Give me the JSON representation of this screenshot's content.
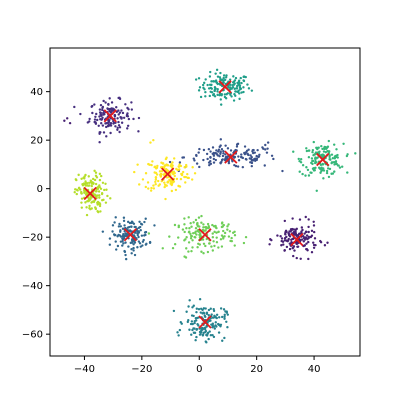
{
  "chart_data": {
    "type": "scatter",
    "title": "",
    "xlabel": "",
    "ylabel": "",
    "xlim": [
      -52,
      56
    ],
    "ylim": [
      -69,
      58
    ],
    "xticks": [
      -40,
      -20,
      0,
      20,
      40
    ],
    "yticks": [
      -60,
      -40,
      -20,
      0,
      20,
      40
    ],
    "xtick_labels": [
      "−40",
      "−20",
      "0",
      "20",
      "40"
    ],
    "ytick_labels": [
      "−60",
      "−40",
      "−20",
      "0",
      "20",
      "40"
    ],
    "grid": false,
    "legend": "none",
    "point_color": "#440154",
    "center_color": "#e31a1c",
    "clusters": [
      {
        "color": "#1f9e89",
        "cx": 9,
        "cy": 42,
        "sx": 5.5,
        "sy": 3.5,
        "n": 150
      },
      {
        "color": "#462f7f",
        "cx": -31,
        "cy": 30,
        "sx": 4.5,
        "sy": 4.0,
        "n": 150
      },
      {
        "color": "#3b528b",
        "cx": 11,
        "cy": 13,
        "sx": 10.0,
        "sy": 2.8,
        "n": 150
      },
      {
        "color": "#35b779",
        "cx": 43,
        "cy": 12,
        "sx": 4.5,
        "sy": 4.0,
        "n": 150
      },
      {
        "color": "#fde725",
        "cx": -11,
        "cy": 6,
        "sx": 5.0,
        "sy": 4.5,
        "n": 150
      },
      {
        "color": "#b5de2b",
        "cx": -38,
        "cy": -2,
        "sx": 3.0,
        "sy": 5.0,
        "n": 150
      },
      {
        "color": "#31688e",
        "cx": -24,
        "cy": -19,
        "sx": 4.0,
        "sy": 4.0,
        "n": 150
      },
      {
        "color": "#6ece58",
        "cx": 2,
        "cy": -19,
        "sx": 6.5,
        "sy": 4.0,
        "n": 150
      },
      {
        "color": "#482173",
        "cx": 34,
        "cy": -21,
        "sx": 4.5,
        "sy": 4.0,
        "n": 150
      },
      {
        "color": "#26828e",
        "cx": 2,
        "cy": -55,
        "sx": 4.5,
        "sy": 4.5,
        "n": 150
      }
    ],
    "extra_points": [
      {
        "color": "#482173",
        "x": -46,
        "y": 29
      },
      {
        "color": "#482173",
        "x": -45,
        "y": 27
      },
      {
        "color": "#482173",
        "x": -47,
        "y": 28
      },
      {
        "color": "#3b528b",
        "x": 23,
        "y": 18
      },
      {
        "color": "#3b528b",
        "x": 24,
        "y": 19
      },
      {
        "color": "#3b528b",
        "x": 22,
        "y": 17
      },
      {
        "color": "#b5de2b",
        "x": -32,
        "y": -3
      },
      {
        "color": "#b5de2b",
        "x": -31,
        "y": -4
      },
      {
        "color": "#fde725",
        "x": -17,
        "y": 19
      },
      {
        "color": "#fde725",
        "x": -16,
        "y": 20
      },
      {
        "color": "#35b779",
        "x": 35,
        "y": 7
      },
      {
        "color": "#35b779",
        "x": 36,
        "y": 6
      }
    ],
    "centers": [
      {
        "x": 9,
        "y": 42
      },
      {
        "x": -31,
        "y": 30
      },
      {
        "x": 11,
        "y": 13
      },
      {
        "x": 43,
        "y": 12
      },
      {
        "x": -11,
        "y": 6
      },
      {
        "x": -38,
        "y": -2
      },
      {
        "x": -24,
        "y": -19
      },
      {
        "x": 2,
        "y": -19
      },
      {
        "x": 34,
        "y": -21
      },
      {
        "x": 2,
        "y": -55
      }
    ]
  }
}
